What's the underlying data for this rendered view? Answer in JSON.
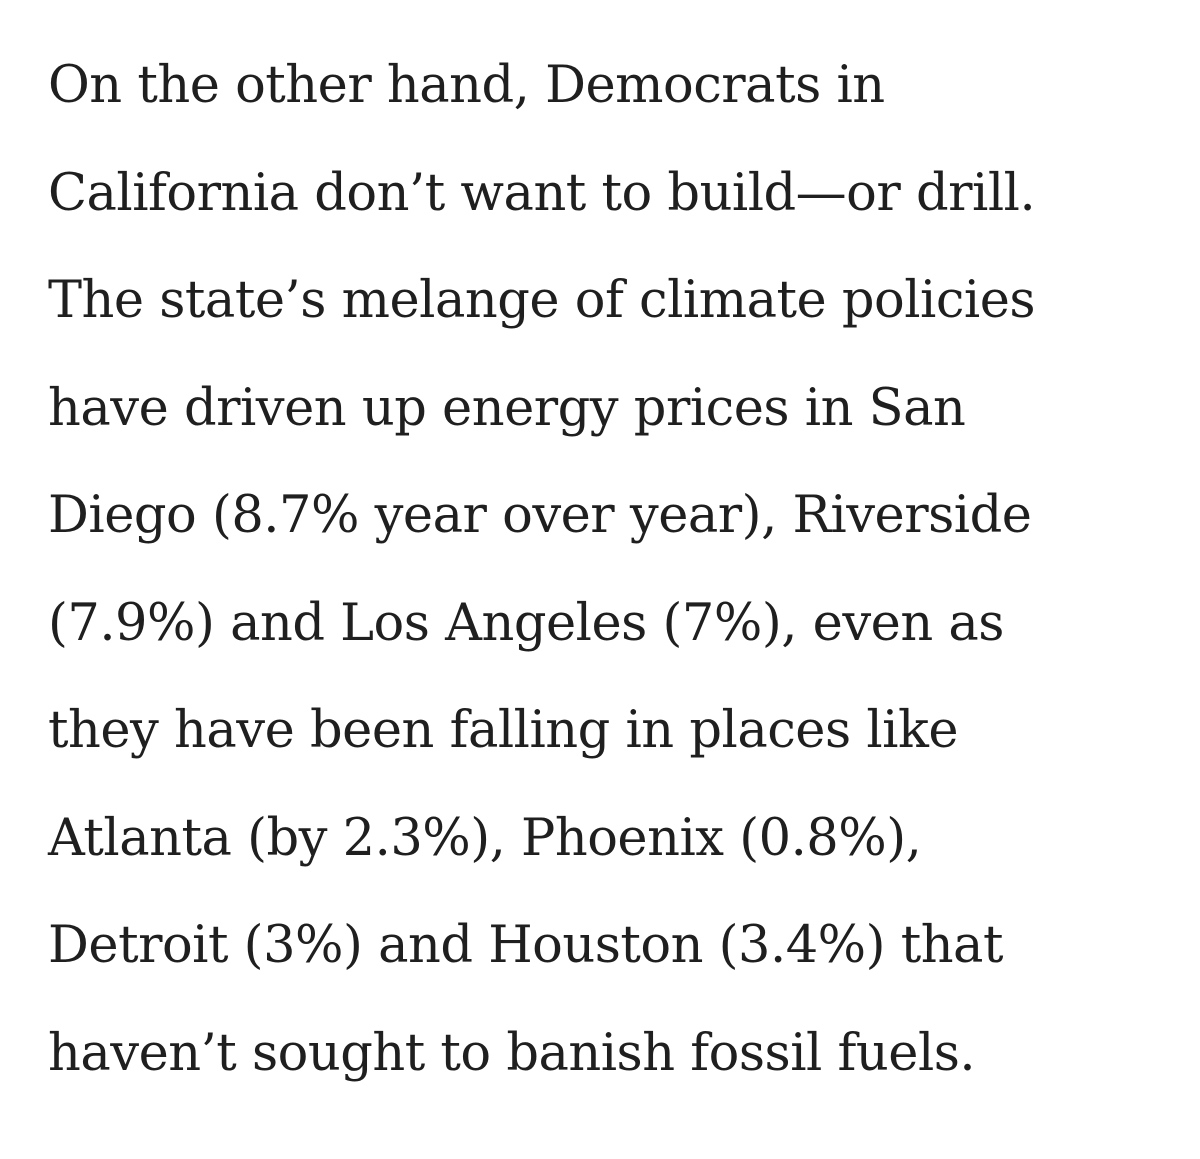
{
  "article": {
    "lines": [
      "On the other hand, Democrats in",
      "California don’t want to build—or drill.",
      "The state’s melange of climate policies",
      "have driven up energy prices in San",
      "Diego (8.7% year over year), Riverside",
      "(7.9%) and Los Angeles (7%), even as",
      "they have been falling in places like",
      "Atlanta (by 2.3%), Phoenix (0.8%),",
      "Detroit (3%) and Houston (3.4%) that",
      "haven’t sought to banish fossil fuels."
    ]
  },
  "colors": {
    "text": "#1f1f1f",
    "background": "#ffffff"
  }
}
